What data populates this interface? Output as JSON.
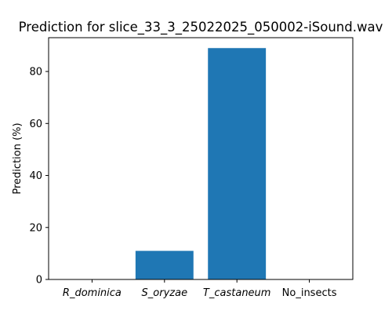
{
  "chart_data": {
    "type": "bar",
    "title": "Prediction for slice_33_3_25022025_050002-iSound.wav",
    "xlabel": "",
    "ylabel": "Prediction (%)",
    "categories": [
      "R_dominica",
      "S_oryzae",
      "T_castaneum",
      "No_insects"
    ],
    "category_italic": [
      true,
      true,
      true,
      false
    ],
    "values": [
      0,
      11,
      89,
      0
    ],
    "ylim": [
      0,
      93
    ],
    "yticks": [
      0,
      20,
      40,
      60,
      80
    ],
    "grid": false,
    "legend": "none",
    "colors": {
      "bar": "#1f77b4",
      "axis": "#000000",
      "background": "#ffffff"
    }
  }
}
